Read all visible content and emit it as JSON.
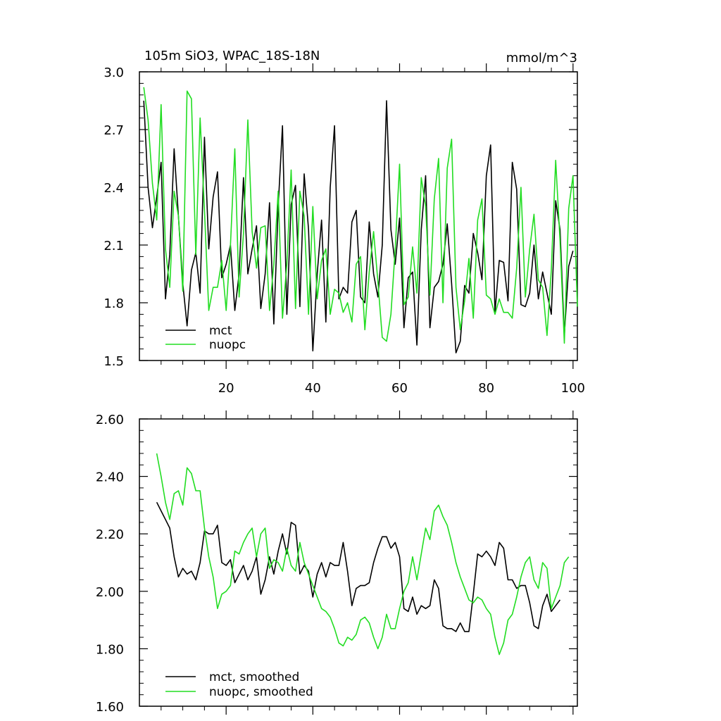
{
  "figure": {
    "title_left": "105m SiO3, WPAC_18S-18N",
    "title_right": "mmol/m^3"
  },
  "colors": {
    "mct": "#000000",
    "nuopc": "#22dd22"
  },
  "chart_data": [
    {
      "type": "line",
      "title": "105m SiO3, WPAC_18S-18N",
      "units": "mmol/m^3",
      "xlim": [
        0,
        101
      ],
      "ylim": [
        1.5,
        3.0
      ],
      "x_ticks": [
        20,
        40,
        60,
        80,
        100
      ],
      "x_tick_labels": [
        "20",
        "40",
        "60",
        "80",
        "100"
      ],
      "y_ticks": [
        1.5,
        1.8,
        2.1,
        2.4,
        2.7,
        3.0
      ],
      "y_tick_labels": [
        "1.5",
        "1.8",
        "2.1",
        "2.4",
        "2.7",
        "3.0"
      ],
      "legend_position": "bottom-left",
      "series": [
        {
          "name": "mct",
          "color": "#000000",
          "x_start": 1,
          "values": [
            2.85,
            2.4,
            2.19,
            2.35,
            2.53,
            1.82,
            2.05,
            2.6,
            2.25,
            1.9,
            1.68,
            1.97,
            2.06,
            1.85,
            2.66,
            2.08,
            2.35,
            2.48,
            1.93,
            2.0,
            2.1,
            1.76,
            1.95,
            2.45,
            1.95,
            2.08,
            2.2,
            1.77,
            1.95,
            2.32,
            1.69,
            2.3,
            2.72,
            1.74,
            2.31,
            2.41,
            1.78,
            2.47,
            2.18,
            1.55,
            1.95,
            2.23,
            1.7,
            2.4,
            2.72,
            1.82,
            1.88,
            1.85,
            2.22,
            2.28,
            1.83,
            1.8,
            2.22,
            1.95,
            1.83,
            2.1,
            2.85,
            2.18,
            2.0,
            2.24,
            1.67,
            1.93,
            1.96,
            1.58,
            2.18,
            2.46,
            1.67,
            1.88,
            1.91,
            2.0,
            2.21,
            1.9,
            1.54,
            1.6,
            1.89,
            1.85,
            2.16,
            2.06,
            1.92,
            2.46,
            2.62,
            1.75,
            2.02,
            2.01,
            1.81,
            2.53,
            2.39,
            1.79,
            1.78,
            1.85,
            2.1,
            1.82,
            1.96,
            1.85,
            1.74,
            2.33,
            2.18,
            1.63,
            1.99,
            2.07
          ]
        },
        {
          "name": "nuopc",
          "color": "#22dd22",
          "x_start": 1,
          "values": [
            2.92,
            2.75,
            2.42,
            2.23,
            2.83,
            2.08,
            1.88,
            2.38,
            2.25,
            1.86,
            2.9,
            2.86,
            2.05,
            2.76,
            2.28,
            1.76,
            1.88,
            1.88,
            2.02,
            1.76,
            2.1,
            2.6,
            1.83,
            2.16,
            2.75,
            2.17,
            1.98,
            2.19,
            2.2,
            1.76,
            2.0,
            2.38,
            1.72,
            2.0,
            2.49,
            1.77,
            2.38,
            2.25,
            1.74,
            2.3,
            1.82,
            2.02,
            2.08,
            1.74,
            1.87,
            1.85,
            1.75,
            1.8,
            1.7,
            2.0,
            2.04,
            1.66,
            1.96,
            2.17,
            1.91,
            1.62,
            1.6,
            1.74,
            2.08,
            2.52,
            1.79,
            1.83,
            2.09,
            1.85,
            2.45,
            2.3,
            1.84,
            2.34,
            2.55,
            1.8,
            2.5,
            2.65,
            1.88,
            1.66,
            1.81,
            2.03,
            1.72,
            2.23,
            2.34,
            1.84,
            1.82,
            1.74,
            1.82,
            1.75,
            1.75,
            1.72,
            1.98,
            2.4,
            1.83,
            2.08,
            2.26,
            1.92,
            1.88,
            1.63,
            1.97,
            2.54,
            2.12,
            1.59,
            2.29,
            2.46,
            1.78
          ]
        }
      ]
    },
    {
      "type": "line",
      "title": "",
      "xlim": [
        0,
        101
      ],
      "ylim": [
        1.6,
        2.6
      ],
      "y_ticks": [
        1.6,
        1.8,
        2.0,
        2.2,
        2.4,
        2.6
      ],
      "y_tick_labels": [
        "1.60",
        "1.80",
        "2.00",
        "2.20",
        "2.40",
        "2.60"
      ],
      "x_ticks": [
        20,
        40,
        60,
        80,
        100
      ],
      "legend_position": "bottom-left",
      "series": [
        {
          "name": "mct, smoothed",
          "color": "#000000",
          "x_start": 4,
          "values": [
            2.31,
            2.28,
            2.25,
            2.22,
            2.12,
            2.05,
            2.08,
            2.06,
            2.07,
            2.04,
            2.1,
            2.21,
            2.2,
            2.2,
            2.23,
            2.1,
            2.09,
            2.11,
            2.03,
            2.06,
            2.09,
            2.04,
            2.07,
            2.12,
            1.99,
            2.04,
            2.12,
            2.06,
            2.14,
            2.2,
            2.13,
            2.24,
            2.23,
            2.06,
            2.09,
            2.07,
            1.98,
            2.06,
            2.1,
            2.05,
            2.1,
            2.09,
            2.09,
            2.17,
            2.07,
            1.95,
            2.01,
            2.02,
            2.02,
            2.03,
            2.1,
            2.15,
            2.19,
            2.19,
            2.15,
            2.17,
            2.12,
            1.94,
            1.93,
            1.98,
            1.92,
            1.95,
            1.94,
            1.95,
            2.04,
            2.01,
            1.88,
            1.87,
            1.87,
            1.86,
            1.89,
            1.86,
            1.86,
            1.99,
            2.13,
            2.12,
            2.14,
            2.12,
            2.09,
            2.17,
            2.15,
            2.04,
            2.04,
            2.01,
            2.02,
            2.02,
            1.96,
            1.88,
            1.87,
            1.95,
            1.99,
            1.93,
            1.95,
            1.97
          ]
        },
        {
          "name": "nuopc, smoothed",
          "color": "#22dd22",
          "x_start": 4,
          "values": [
            2.48,
            2.4,
            2.31,
            2.25,
            2.34,
            2.35,
            2.3,
            2.43,
            2.41,
            2.35,
            2.35,
            2.22,
            2.12,
            2.05,
            1.94,
            1.99,
            2.0,
            2.02,
            2.14,
            2.13,
            2.17,
            2.2,
            2.22,
            2.12,
            2.2,
            2.22,
            2.08,
            2.11,
            2.1,
            2.07,
            2.15,
            2.09,
            2.07,
            2.17,
            2.1,
            2.06,
            2.02,
            1.98,
            1.94,
            1.93,
            1.91,
            1.87,
            1.82,
            1.81,
            1.84,
            1.83,
            1.85,
            1.9,
            1.91,
            1.89,
            1.84,
            1.8,
            1.84,
            1.92,
            1.87,
            1.87,
            1.94,
            2.0,
            2.03,
            2.12,
            2.04,
            2.13,
            2.22,
            2.18,
            2.28,
            2.3,
            2.26,
            2.23,
            2.17,
            2.1,
            2.05,
            2.01,
            1.97,
            1.96,
            1.98,
            1.97,
            1.94,
            1.92,
            1.84,
            1.78,
            1.82,
            1.9,
            1.92,
            1.98,
            2.05,
            2.1,
            2.12,
            2.04,
            2.01,
            2.1,
            2.08,
            1.94,
            1.98,
            2.02,
            2.1,
            2.12
          ]
        }
      ]
    }
  ]
}
